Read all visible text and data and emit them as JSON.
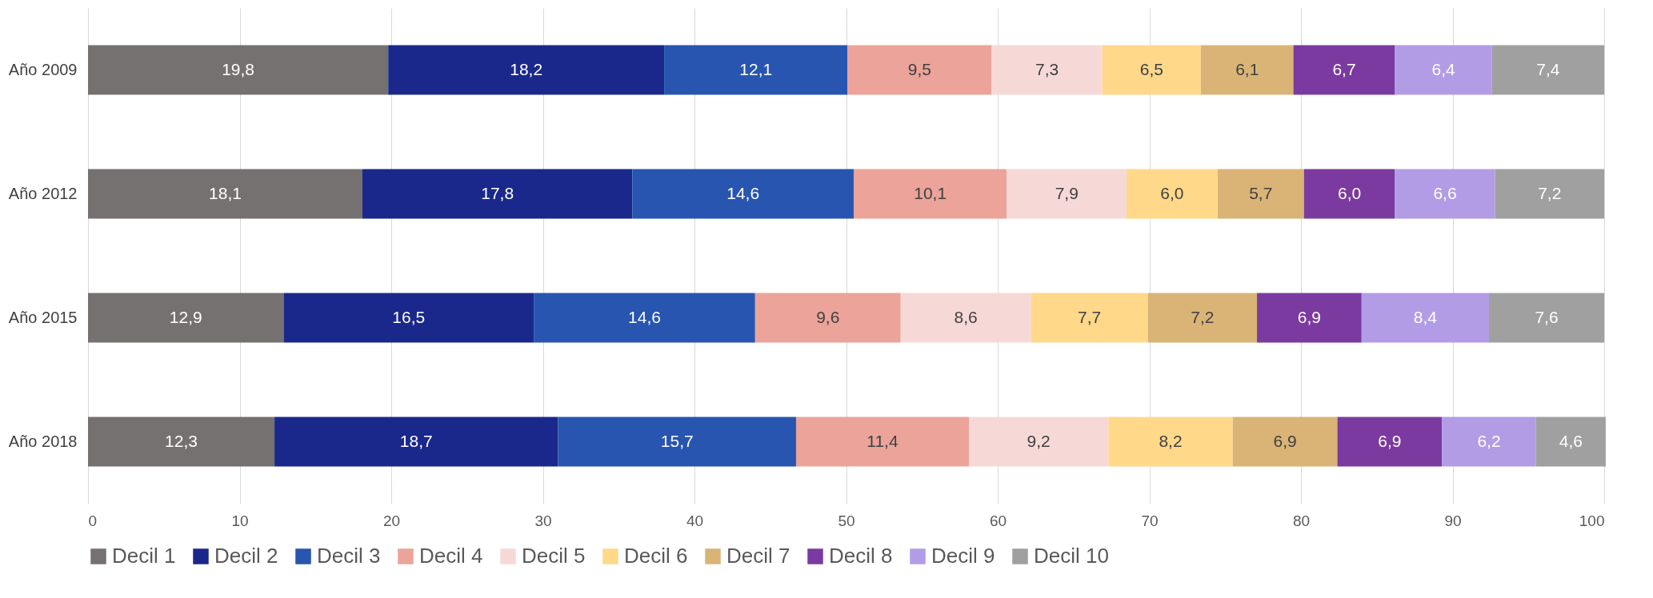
{
  "chart_data": {
    "type": "bar",
    "orientation": "horizontal",
    "stacked": true,
    "grid": "x",
    "legend": "bottom",
    "categories": [
      "Año 2009",
      "Año 2012",
      "Año 2015",
      "Año 2018"
    ],
    "xlim": [
      0,
      100
    ],
    "xticks": [
      0,
      10,
      20,
      30,
      40,
      50,
      60,
      70,
      80,
      90,
      100
    ],
    "series": [
      {
        "name": "Decil 1",
        "color": "#767171",
        "values": [
          19.8,
          18.1,
          12.9,
          12.3
        ],
        "value_labels": [
          "19,8",
          "18,1",
          "12,9",
          "12,3"
        ]
      },
      {
        "name": "Decil 2",
        "color": "#1a288c",
        "values": [
          18.2,
          17.8,
          16.5,
          18.7
        ],
        "value_labels": [
          "18,2",
          "17,8",
          "16,5",
          "18,7"
        ]
      },
      {
        "name": "Decil 3",
        "color": "#2755b0",
        "values": [
          12.1,
          14.6,
          14.6,
          15.7
        ],
        "value_labels": [
          "12,1",
          "14,6",
          "14,6",
          "15,7"
        ]
      },
      {
        "name": "Decil 4",
        "color": "#eba39a",
        "values": [
          9.5,
          10.1,
          9.6,
          11.4
        ],
        "value_labels": [
          "9,5",
          "10,1",
          "9,6",
          "11,4"
        ]
      },
      {
        "name": "Decil 5",
        "color": "#f6d9d6",
        "values": [
          7.3,
          7.9,
          8.6,
          9.2
        ],
        "value_labels": [
          "7,3",
          "7,9",
          "8,6",
          "9,2"
        ]
      },
      {
        "name": "Decil 6",
        "color": "#ffd88a",
        "values": [
          6.5,
          6.0,
          7.7,
          8.2
        ],
        "value_labels": [
          "6,5",
          "6,0",
          "7,7",
          "8,2"
        ]
      },
      {
        "name": "Decil 7",
        "color": "#d9b476",
        "values": [
          6.1,
          5.7,
          7.2,
          6.9
        ],
        "value_labels": [
          "6,1",
          "5,7",
          "7,2",
          "6,9"
        ]
      },
      {
        "name": "Decil 8",
        "color": "#7b3aa0",
        "values": [
          6.7,
          6.0,
          6.9,
          6.9
        ],
        "value_labels": [
          "6,7",
          "6,0",
          "6,9",
          "6,9"
        ]
      },
      {
        "name": "Decil 9",
        "color": "#b39ce6",
        "values": [
          6.4,
          6.6,
          8.4,
          6.2
        ],
        "value_labels": [
          "6,4",
          "6,6",
          "8,4",
          "6,2"
        ]
      },
      {
        "name": "Decil 10",
        "color": "#a0a0a0",
        "values": [
          7.4,
          7.2,
          7.6,
          4.6
        ],
        "value_labels": [
          "7,4",
          "7,2",
          "7,6",
          "4,6"
        ]
      }
    ]
  }
}
